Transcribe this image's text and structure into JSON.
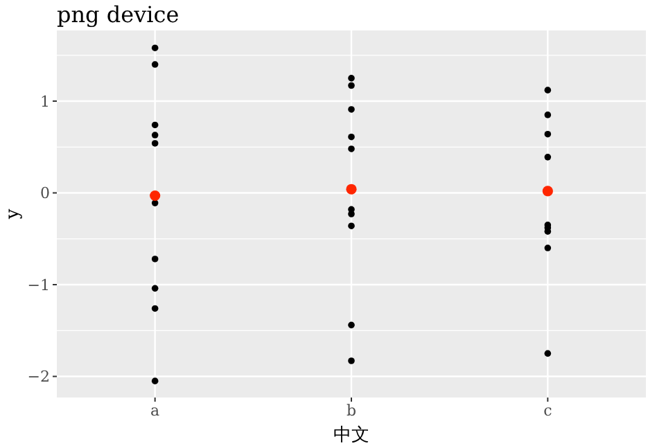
{
  "chart_data": {
    "type": "scatter",
    "title": "png device",
    "xlabel": "中文",
    "ylabel": "y",
    "categories": [
      "a",
      "b",
      "c"
    ],
    "ylim": [
      -2.23,
      1.77
    ],
    "yticks": [
      -2,
      -1,
      0,
      1
    ],
    "grid": true,
    "marker": "circle",
    "series": [
      {
        "color": "#000000",
        "x": [
          "a",
          "a",
          "a",
          "a",
          "a",
          "a",
          "a",
          "a",
          "a",
          "a",
          "b",
          "b",
          "b",
          "b",
          "b",
          "b",
          "b",
          "b",
          "b",
          "b",
          "c",
          "c",
          "c",
          "c",
          "c",
          "c",
          "c",
          "c",
          "c"
        ],
        "values": [
          1.58,
          1.4,
          0.74,
          0.63,
          0.54,
          -0.11,
          -0.72,
          -1.04,
          -1.26,
          -2.05,
          1.25,
          1.17,
          0.91,
          0.61,
          0.48,
          -0.18,
          -0.23,
          -0.36,
          -1.44,
          -1.83,
          1.12,
          0.85,
          0.64,
          0.39,
          -0.35,
          -0.38,
          -0.42,
          -0.6,
          -1.75
        ]
      },
      {
        "color": "#ff2600",
        "x": [
          "a",
          "b",
          "c"
        ],
        "values": [
          -0.03,
          0.04,
          0.02
        ]
      }
    ]
  }
}
